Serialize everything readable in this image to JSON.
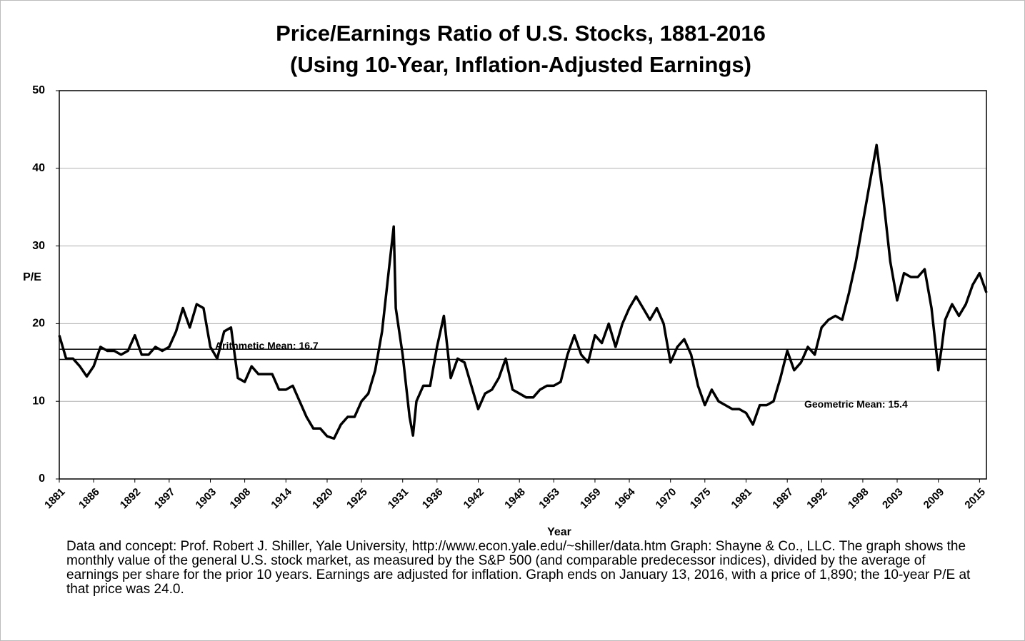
{
  "chart_data": {
    "type": "line",
    "title": [
      "Price/Earnings Ratio of U.S. Stocks, 1881-2016",
      "(Using 10-Year, Inflation-Adjusted Earnings)"
    ],
    "y_label": "P/E",
    "x_label": "Year",
    "note": "Data and concept: Prof. Robert J. Shiller, Yale University, http://www.econ.yale.edu/~shiller/data.htm Graph: Shayne & Co., LLC. The graph shows the monthly value of the general U.S. stock market, as measured by the S&P 500 (and comparable predecessor indices), divided by the average of earnings per share for the prior 10 years. Earnings are adjusted for inflation. Graph ends on January 13, 2016, with a price of 1,890; the 10-year P/E at that price was 24.0.",
    "color": "#000000",
    "x": [
      1881,
      1882,
      1883,
      1884,
      1885,
      1886,
      1887,
      1888,
      1889,
      1890,
      1891,
      1892,
      1893,
      1894,
      1895,
      1896,
      1897,
      1898,
      1899,
      1900,
      1901,
      1902,
      1903,
      1904,
      1905,
      1906,
      1907,
      1908,
      1909,
      1910,
      1911,
      1912,
      1913,
      1914,
      1915,
      1916,
      1917,
      1918,
      1919,
      1920,
      1921,
      1922,
      1923,
      1924,
      1925,
      1926,
      1927,
      1928,
      1929,
      1929.7,
      1930,
      1931,
      1932,
      1932.5,
      1933,
      1934,
      1935,
      1936,
      1937,
      1938,
      1939,
      1940,
      1941,
      1942,
      1943,
      1944,
      1945,
      1946,
      1947,
      1948,
      1949,
      1950,
      1951,
      1952,
      1953,
      1954,
      1955,
      1956,
      1957,
      1958,
      1959,
      1960,
      1961,
      1962,
      1963,
      1964,
      1965,
      1966,
      1967,
      1968,
      1969,
      1970,
      1971,
      1972,
      1973,
      1974,
      1975,
      1976,
      1977,
      1978,
      1979,
      1980,
      1981,
      1982,
      1983,
      1984,
      1985,
      1986,
      1987,
      1988,
      1989,
      1990,
      1991,
      1992,
      1993,
      1994,
      1995,
      1996,
      1997,
      1998,
      1999,
      2000,
      2001,
      2002,
      2003,
      2004,
      2005,
      2006,
      2007,
      2008,
      2009,
      2009.5,
      2010,
      2011,
      2012,
      2013,
      2014,
      2015,
      2016
    ],
    "values": [
      18.5,
      15.5,
      15.5,
      14.5,
      13.2,
      14.5,
      17,
      16.5,
      16.5,
      16,
      16.5,
      18.5,
      16,
      16,
      17,
      16.5,
      17,
      19,
      22,
      19.5,
      22.5,
      22,
      17,
      15.5,
      19,
      19.5,
      13,
      12.5,
      14.5,
      13.5,
      13.5,
      13.5,
      11.5,
      11.5,
      12,
      10,
      8,
      6.5,
      6.5,
      5.5,
      5.2,
      7,
      8,
      8,
      10,
      11,
      14,
      19,
      27,
      32.5,
      22,
      16,
      8,
      5.6,
      10,
      12,
      12,
      17,
      21,
      13,
      15.5,
      15,
      12,
      9,
      11,
      11.5,
      13,
      15.5,
      11.5,
      11,
      10.5,
      10.5,
      11.5,
      12,
      12,
      12.5,
      16,
      18.5,
      16,
      15,
      18.5,
      17.5,
      20,
      17,
      20,
      22,
      23.5,
      22,
      20.5,
      22,
      20,
      15,
      17,
      18,
      16,
      12,
      9.5,
      11.5,
      10,
      9.5,
      9,
      9,
      8.5,
      7,
      9.5,
      9.5,
      10,
      13,
      16.5,
      14,
      15,
      17,
      16,
      19.5,
      20.5,
      21,
      20.5,
      24,
      28,
      33,
      38,
      43,
      36,
      28,
      23,
      26.5,
      26,
      26,
      27,
      22,
      14,
      17,
      20.5,
      22.5,
      21,
      22.5,
      25,
      26.5,
      24
    ],
    "reference_lines": [
      {
        "value": 16.7,
        "label": "Arithmetic Mean: 16.7"
      },
      {
        "value": 15.4,
        "label": "Geometric Mean: 15.4"
      }
    ],
    "xlim": [
      1881,
      2016
    ],
    "xticks": [
      1881,
      1886,
      1892,
      1897,
      1903,
      1908,
      1914,
      1920,
      1925,
      1931,
      1936,
      1942,
      1948,
      1953,
      1959,
      1964,
      1970,
      1975,
      1981,
      1987,
      1992,
      1998,
      2003,
      2009,
      2015
    ],
    "ylim": [
      0,
      50
    ],
    "yticks": [
      0,
      10,
      20,
      30,
      40,
      50
    ],
    "grid": true
  }
}
